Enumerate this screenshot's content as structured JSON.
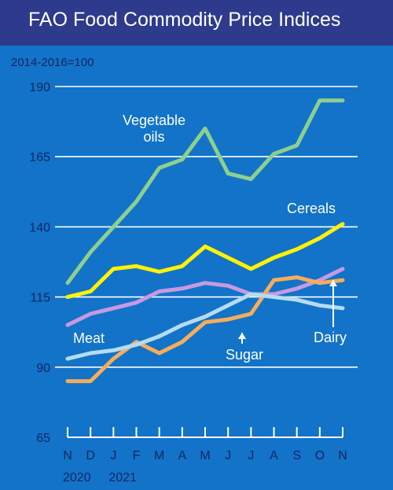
{
  "header": {
    "title": "FAO Food Commodity Price Indices"
  },
  "chart_data": {
    "type": "line",
    "title": "FAO Food Commodity Price Indices",
    "subtitle": "2014-2016=100",
    "categories": [
      "N",
      "D",
      "J",
      "F",
      "M",
      "A",
      "M",
      "J",
      "J",
      "A",
      "S",
      "O",
      "N"
    ],
    "year_labels": [
      "2020",
      "2021"
    ],
    "yticks": [
      65,
      90,
      115,
      140,
      165,
      190
    ],
    "ylim": [
      65,
      190
    ],
    "grid": true,
    "colors": {
      "background": "#1273c9",
      "title_bar": "#2e3a8c",
      "vegetable_oils": "#8ecf8f",
      "cereals": "#fff200",
      "meat": "#c79ae0",
      "sugar": "#f5ad5a",
      "dairy": "#b4dcf2"
    },
    "series": [
      {
        "key": "vegetable_oils",
        "name_lines": [
          "Vegetable",
          "oils"
        ],
        "values": [
          120,
          131,
          140,
          149,
          161,
          164,
          175,
          159,
          157,
          166,
          169,
          185,
          185
        ]
      },
      {
        "key": "cereals",
        "name_lines": [
          "Cereals"
        ],
        "values": [
          115,
          117,
          125,
          126,
          124,
          126,
          133,
          129,
          125,
          129,
          132,
          136,
          141
        ]
      },
      {
        "key": "meat",
        "name_lines": [
          "Meat"
        ],
        "values": [
          105,
          109,
          111,
          113,
          117,
          118,
          120,
          119,
          116,
          116,
          118,
          121,
          125
        ]
      },
      {
        "key": "sugar",
        "name_lines": [
          "Sugar"
        ],
        "values": [
          85,
          85,
          93,
          99,
          95,
          99,
          106,
          107,
          109,
          121,
          122,
          120,
          121
        ]
      },
      {
        "key": "dairy",
        "name_lines": [
          "Dairy"
        ],
        "values": [
          93,
          95,
          96,
          98,
          101,
          105,
          108,
          112,
          116,
          115,
          114,
          112,
          111
        ]
      }
    ]
  }
}
